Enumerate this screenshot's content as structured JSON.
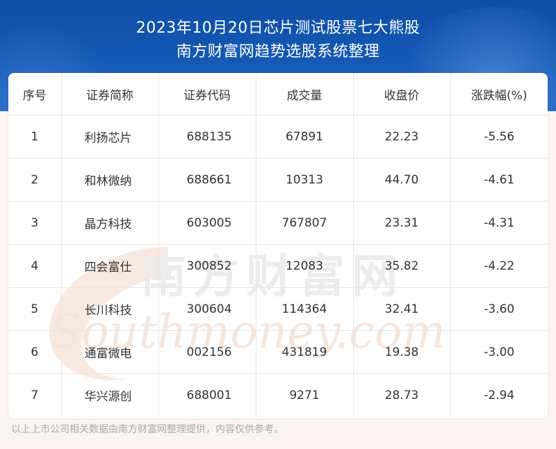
{
  "header": {
    "title_line1": "2023年10月20日芯片测试股票七大熊股",
    "title_line2": "南方财富网趋势选股系统整理"
  },
  "table": {
    "columns": [
      "序号",
      "证券简称",
      "证券代码",
      "成交量",
      "收盘价",
      "涨跌幅(%)"
    ],
    "rows": [
      [
        "1",
        "利扬芯片",
        "688135",
        "67891",
        "22.23",
        "-5.56"
      ],
      [
        "2",
        "和林微纳",
        "688661",
        "10313",
        "44.70",
        "-4.61"
      ],
      [
        "3",
        "晶方科技",
        "603005",
        "767807",
        "23.31",
        "-4.31"
      ],
      [
        "4",
        "四会富仕",
        "300852",
        "12083",
        "35.82",
        "-4.22"
      ],
      [
        "5",
        "长川科技",
        "300604",
        "114364",
        "32.41",
        "-3.60"
      ],
      [
        "6",
        "通富微电",
        "002156",
        "431819",
        "19.38",
        "-3.00"
      ],
      [
        "7",
        "华兴源创",
        "688001",
        "9271",
        "28.73",
        "-2.94"
      ]
    ]
  },
  "watermark": {
    "cn": "南方财富网",
    "en": "Southmoney.com"
  },
  "footer": {
    "note": "以上上市公司相关数据由南方财富网整理提供，内容仅供参考。"
  },
  "colors": {
    "header_bg": "#1559b5",
    "title_text": "#ffffff",
    "cell_text": "#333333",
    "footer_text": "#a9a9a9"
  }
}
